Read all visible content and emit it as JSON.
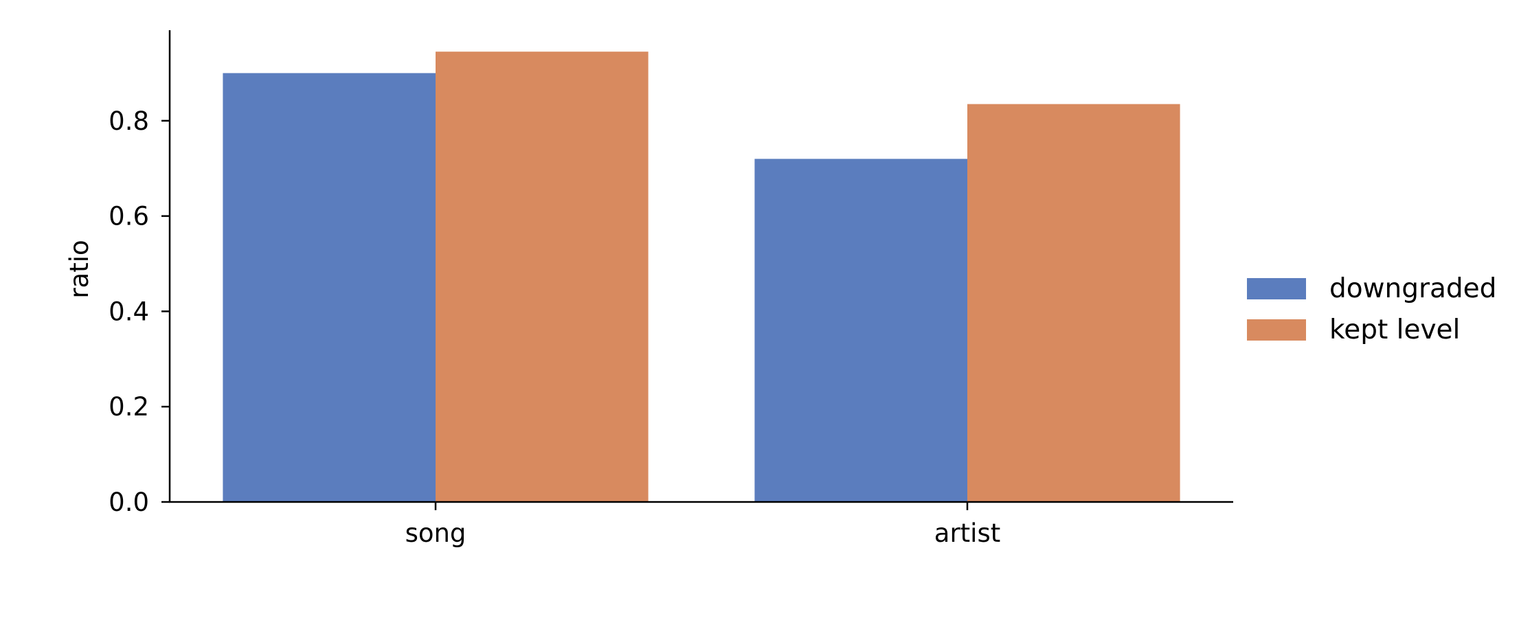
{
  "chart_data": {
    "type": "bar",
    "title": "",
    "xlabel": "",
    "ylabel": "ratio",
    "categories": [
      "song",
      "artist"
    ],
    "series": [
      {
        "name": "downgraded",
        "values": [
          0.9,
          0.72
        ],
        "color": "#5b7dbe"
      },
      {
        "name": "kept level",
        "values": [
          0.945,
          0.835
        ],
        "color": "#d88a5f"
      }
    ],
    "ylim": [
      0,
      0.99
    ],
    "yticks": [
      0.0,
      0.2,
      0.4,
      0.6,
      0.8
    ],
    "ytick_labels": [
      "0.0",
      "0.2",
      "0.4",
      "0.6",
      "0.8"
    ],
    "grid": false,
    "legend_position": "right"
  }
}
